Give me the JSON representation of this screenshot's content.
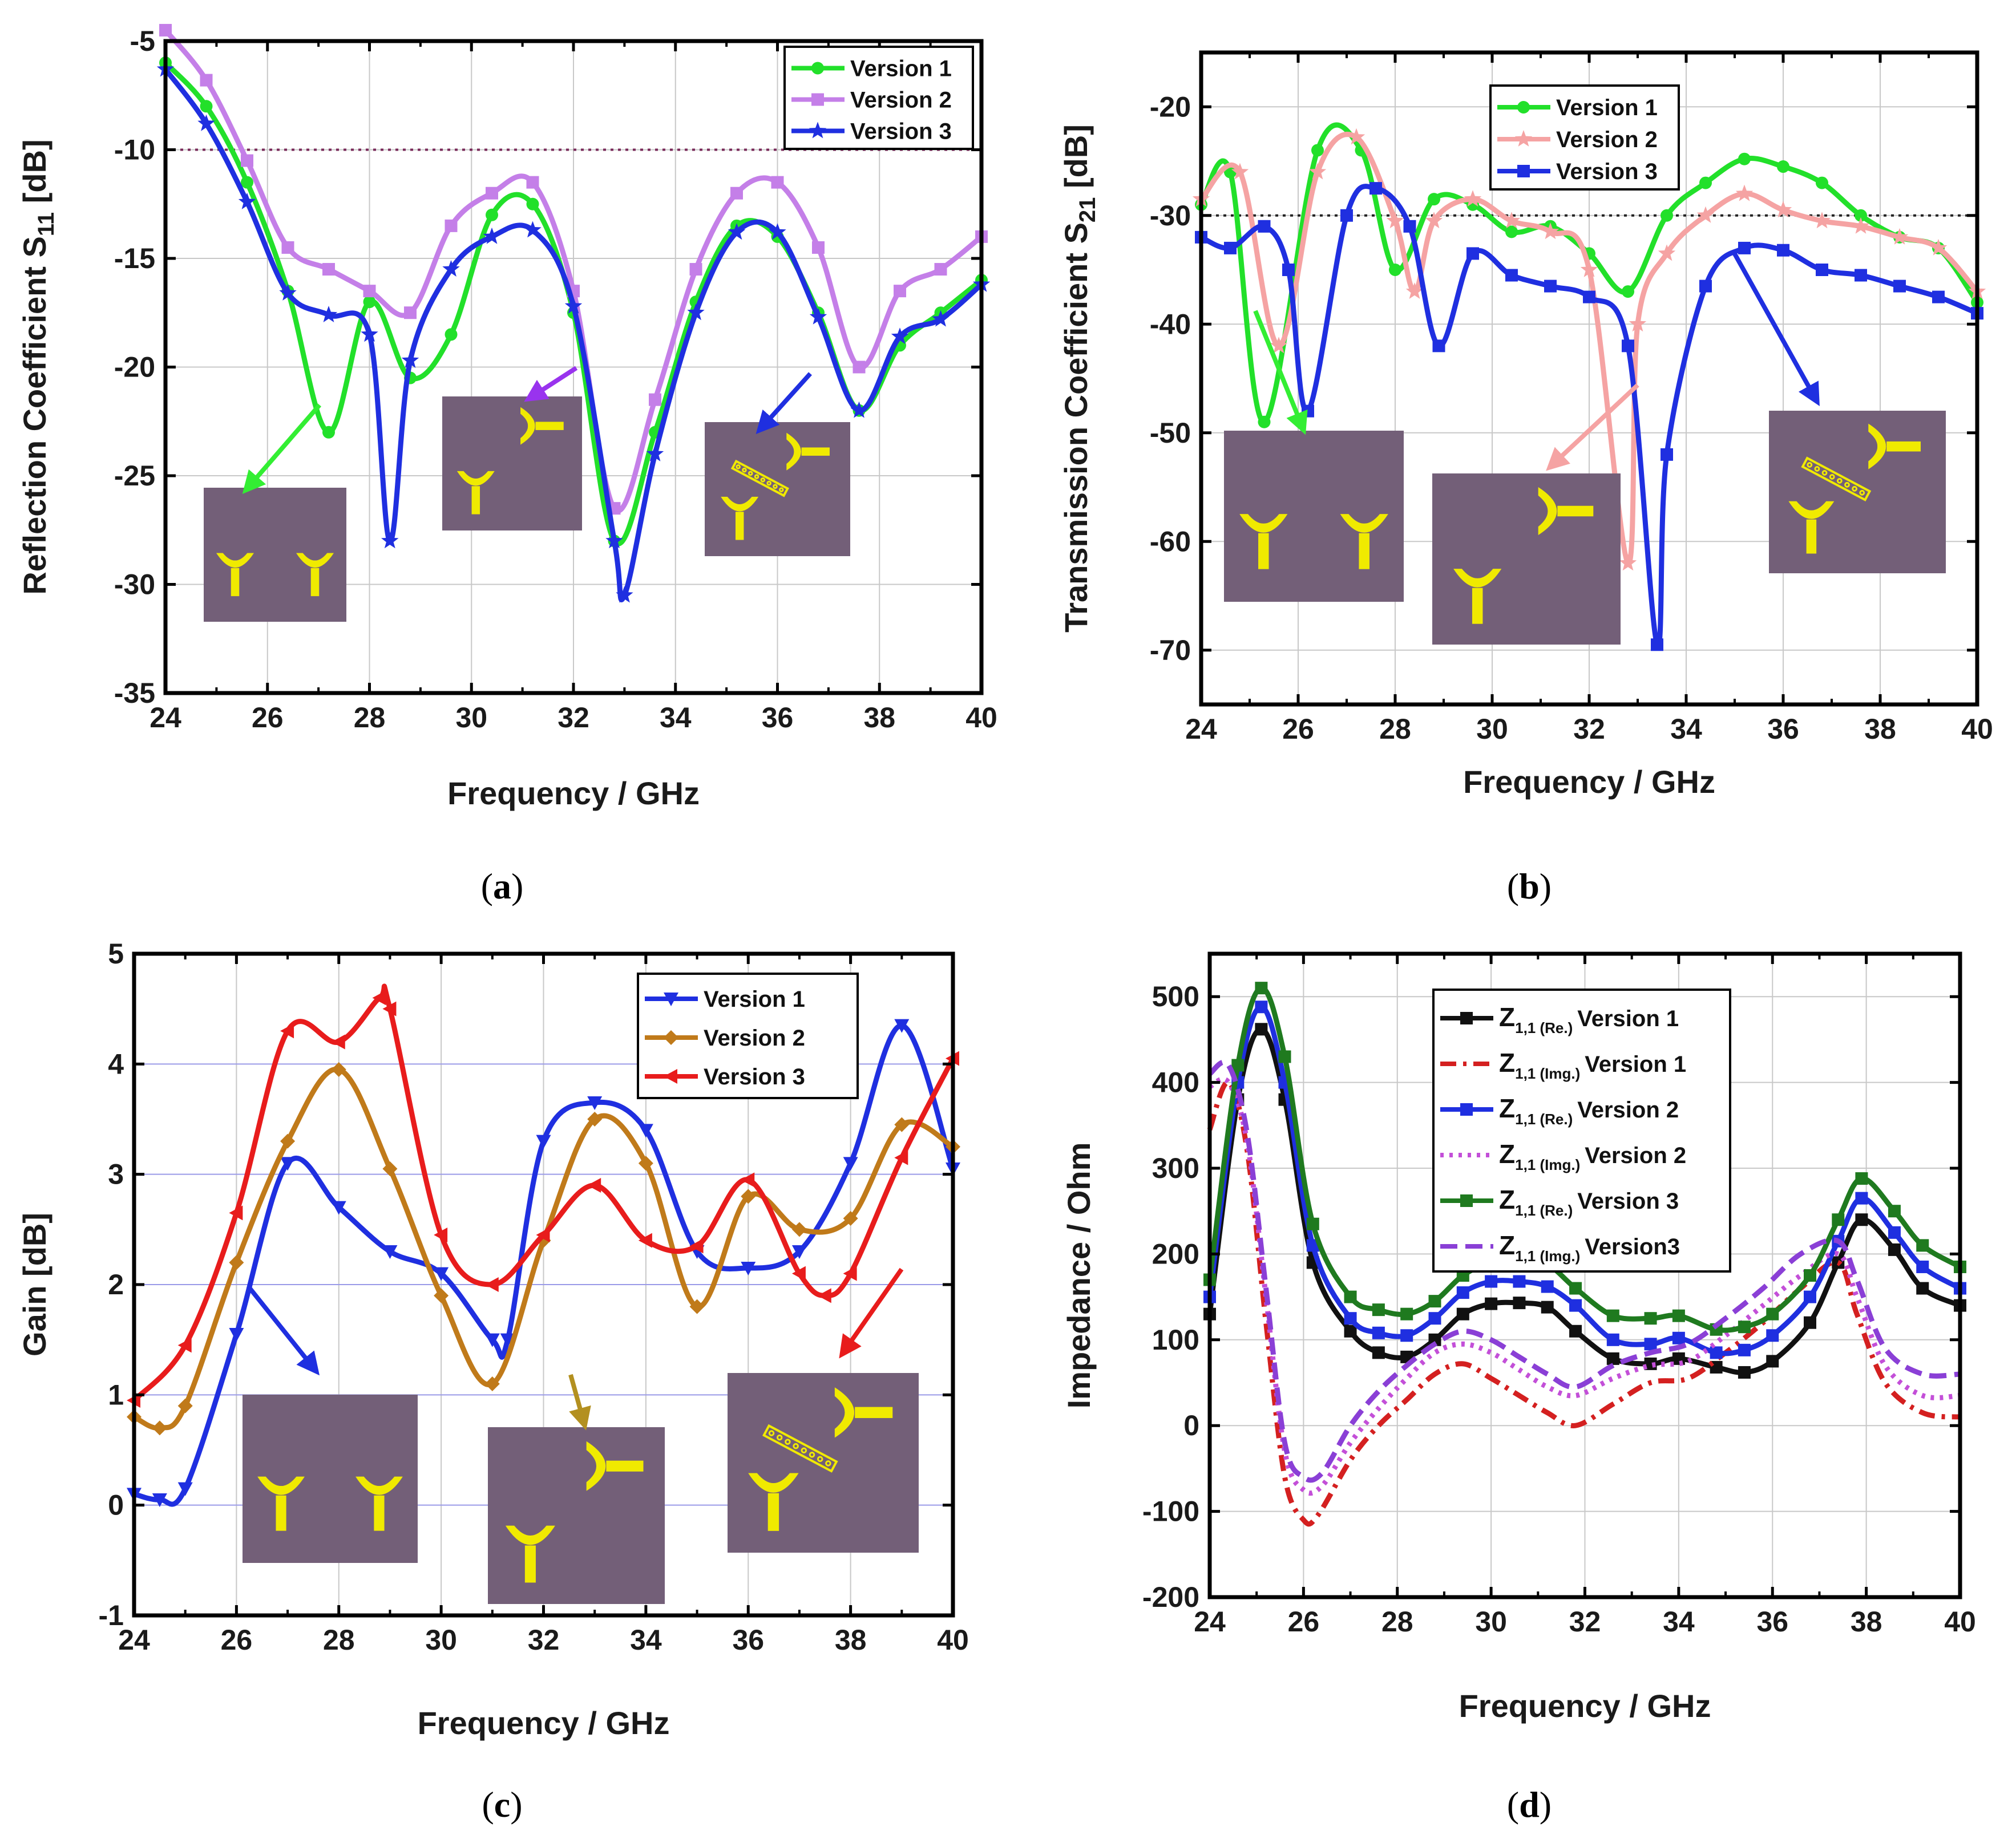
{
  "captions": {
    "a": "a",
    "b": "b",
    "c": "c",
    "d": "d"
  },
  "chart_data": [
    {
      "id": "a",
      "type": "line",
      "ylabel": "Reflection Coefficient S",
      "ylabel_sub": "11",
      "ylabel_suffix": " [dB]",
      "xlabel": "Frequency / GHz",
      "xlim": [
        24,
        40
      ],
      "ylim": [
        -35,
        -5
      ],
      "xticks": [
        24,
        26,
        28,
        30,
        32,
        34,
        36,
        38,
        40
      ],
      "yticks": [
        -35,
        -30,
        -25,
        -20,
        -15,
        -10,
        -5
      ],
      "grid": true,
      "legend_position": "top-right",
      "reference_line": {
        "y": -10,
        "color": "#7a2a5a",
        "style": "dotted"
      },
      "series": [
        {
          "name": "Version 1",
          "color": "#22e02a",
          "marker": "circle",
          "x": [
            24,
            24.8,
            25.6,
            26.4,
            27.2,
            28,
            28.8,
            29.6,
            30.4,
            31.2,
            32,
            32.8,
            33.6,
            34.4,
            35.2,
            36,
            36.8,
            37.6,
            38.4,
            39.2,
            40
          ],
          "y": [
            -6,
            -8,
            -11.5,
            -16.5,
            -23,
            -17,
            -20.5,
            -18.5,
            -13,
            -12.5,
            -17.5,
            -28,
            -23,
            -17,
            -13.5,
            -14,
            -17.5,
            -22,
            -19,
            -17.5,
            -16
          ]
        },
        {
          "name": "Version 2",
          "color": "#c47fe8",
          "marker": "square",
          "x": [
            24,
            24.8,
            25.6,
            26.4,
            27.2,
            28,
            28.8,
            29.6,
            30.4,
            31.2,
            32,
            32.8,
            33.6,
            34.4,
            35.2,
            36,
            36.8,
            37.6,
            38.4,
            39.2,
            40
          ],
          "y": [
            -4.5,
            -6.8,
            -10.5,
            -14.5,
            -15.5,
            -16.5,
            -17.5,
            -13.5,
            -12,
            -11.5,
            -16.5,
            -26.5,
            -21.5,
            -15.5,
            -12,
            -11.5,
            -14.5,
            -20,
            -16.5,
            -15.5,
            -14
          ]
        },
        {
          "name": "Version 3",
          "color": "#1f2fe0",
          "marker": "star",
          "x": [
            24,
            24.8,
            25.6,
            26.4,
            27.2,
            28,
            28.4,
            28.8,
            29.6,
            30.4,
            31.2,
            32,
            32.8,
            33,
            33.6,
            34.4,
            35.2,
            36,
            36.8,
            37.6,
            38.4,
            39.2,
            40
          ],
          "y": [
            -6.3,
            -8.8,
            -12.4,
            -16.6,
            -17.6,
            -18.5,
            -28,
            -19.7,
            -15.5,
            -14,
            -13.7,
            -17.2,
            -28,
            -30.5,
            -24,
            -17.5,
            -13.8,
            -13.8,
            -17.7,
            -22,
            -18.6,
            -17.8,
            -16.2
          ]
        }
      ]
    },
    {
      "id": "b",
      "type": "line",
      "ylabel": "Transmission Coefficient S",
      "ylabel_sub": "21",
      "ylabel_suffix": " [dB]",
      "xlabel": "Frequency / GHz",
      "xlim": [
        24,
        40
      ],
      "ylim": [
        -75,
        -15
      ],
      "xticks": [
        24,
        26,
        28,
        30,
        32,
        34,
        36,
        38,
        40
      ],
      "yticks": [
        -70,
        -60,
        -50,
        -40,
        -30,
        -20
      ],
      "grid": true,
      "legend_position": "top-left",
      "reference_line": {
        "y": -30,
        "color": "#222222",
        "style": "dotted"
      },
      "series": [
        {
          "name": "Version 1",
          "color": "#22e02a",
          "marker": "circle",
          "x": [
            24,
            24.6,
            25.3,
            26.4,
            27.3,
            28,
            28.8,
            29.6,
            30.4,
            31.2,
            32,
            32.8,
            33.6,
            34.4,
            35.2,
            36,
            36.8,
            37.6,
            38.4,
            39.2,
            40
          ],
          "y": [
            -29,
            -26,
            -49,
            -24,
            -24,
            -35,
            -28.5,
            -29,
            -31.5,
            -31,
            -33.5,
            -37,
            -30,
            -27,
            -24.8,
            -25.5,
            -27,
            -30,
            -32,
            -33,
            -38
          ]
        },
        {
          "name": "Version 2",
          "color": "#f5a3a3",
          "marker": "star",
          "x": [
            24,
            24.8,
            25.6,
            26.4,
            27.2,
            28,
            28.4,
            28.8,
            29.6,
            30.4,
            31.2,
            32,
            32.8,
            33,
            33.6,
            34.4,
            35.2,
            36,
            36.8,
            37.6,
            38.4,
            39.2,
            40
          ],
          "y": [
            -28.5,
            -26,
            -42,
            -26,
            -22.8,
            -30.5,
            -37,
            -30.5,
            -28.5,
            -30.5,
            -31.5,
            -35,
            -62,
            -40,
            -33.5,
            -30,
            -28,
            -29.5,
            -30.5,
            -31,
            -32,
            -33,
            -37
          ]
        },
        {
          "name": "Version 3",
          "color": "#1f2fe0",
          "marker": "square",
          "x": [
            24,
            24.6,
            25.3,
            25.8,
            26.2,
            27,
            27.6,
            28.3,
            28.9,
            29.6,
            30.4,
            31.2,
            32,
            32.8,
            33.4,
            33.6,
            34.4,
            35.2,
            36,
            36.8,
            37.6,
            38.4,
            39.2,
            40
          ],
          "y": [
            -32,
            -33,
            -31,
            -35,
            -48,
            -30,
            -27.5,
            -31,
            -42,
            -33.5,
            -35.5,
            -36.5,
            -37.5,
            -42,
            -69.5,
            -52,
            -36.5,
            -33,
            -33.2,
            -35,
            -35.5,
            -36.5,
            -37.5,
            -39
          ]
        }
      ]
    },
    {
      "id": "c",
      "type": "line",
      "ylabel": "Gain [dB]",
      "xlabel": "Frequency / GHz",
      "xlim": [
        24,
        40
      ],
      "ylim": [
        -1,
        5
      ],
      "xticks": [
        24,
        26,
        28,
        30,
        32,
        34,
        36,
        38,
        40
      ],
      "yticks": [
        -1,
        0,
        1,
        2,
        3,
        4,
        5
      ],
      "grid": true,
      "legend_position": "top-right",
      "series": [
        {
          "name": "Version 1",
          "color": "#1f2fe0",
          "marker": "triangle-down",
          "x": [
            24,
            24.5,
            25,
            26,
            27,
            28,
            29,
            30,
            31,
            31.3,
            32,
            33,
            34,
            35,
            36,
            37,
            38,
            39,
            40
          ],
          "y": [
            0.1,
            0.05,
            0.15,
            1.55,
            3.1,
            2.7,
            2.3,
            2.1,
            1.5,
            1.5,
            3.3,
            3.65,
            3.4,
            2.3,
            2.15,
            2.3,
            3.1,
            4.35,
            3.05
          ]
        },
        {
          "name": "Version 2",
          "color": "#c07a1a",
          "marker": "diamond",
          "x": [
            24,
            24.5,
            25,
            26,
            27,
            28,
            29,
            30,
            31,
            32,
            33,
            34,
            35,
            36,
            37,
            38,
            39,
            40
          ],
          "y": [
            0.8,
            0.7,
            0.9,
            2.2,
            3.3,
            3.95,
            3.05,
            1.9,
            1.1,
            2.4,
            3.5,
            3.1,
            1.8,
            2.8,
            2.5,
            2.6,
            3.45,
            3.25
          ]
        },
        {
          "name": "Version 3",
          "color": "#e81c1c",
          "marker": "triangle-left",
          "x": [
            24,
            25,
            26,
            27,
            28,
            28.8,
            29,
            30,
            31,
            32,
            33,
            34,
            35,
            36,
            37,
            37.5,
            38,
            39,
            40
          ],
          "y": [
            0.95,
            1.45,
            2.65,
            4.3,
            4.2,
            4.6,
            4.5,
            2.45,
            2.0,
            2.45,
            2.9,
            2.4,
            2.35,
            2.95,
            2.1,
            1.9,
            2.1,
            3.15,
            4.05
          ]
        }
      ]
    },
    {
      "id": "d",
      "type": "line",
      "ylabel": "Impedance / Ohm",
      "xlabel": "Frequency / GHz",
      "xlim": [
        24,
        40
      ],
      "ylim": [
        -200,
        550
      ],
      "xticks": [
        24,
        26,
        28,
        30,
        32,
        34,
        36,
        38,
        40
      ],
      "yticks": [
        -200,
        -100,
        0,
        100,
        200,
        300,
        400,
        500
      ],
      "grid": true,
      "legend_position": "top-center",
      "series": [
        {
          "name": "Version 1",
          "label_main": "Z",
          "label_sub": "1,1 (Re.)",
          "color": "#111111",
          "style": "solid",
          "marker": "square",
          "x": [
            24,
            24.6,
            25.1,
            25.6,
            26.2,
            27,
            27.6,
            28.2,
            28.8,
            29.4,
            30,
            30.6,
            31.2,
            31.8,
            32.6,
            33.4,
            34,
            34.8,
            35.4,
            36,
            36.8,
            37.4,
            37.9,
            38.6,
            39.2,
            40
          ],
          "y": [
            130,
            380,
            462,
            380,
            190,
            110,
            85,
            80,
            100,
            130,
            142,
            143,
            138,
            110,
            78,
            72,
            78,
            68,
            62,
            75,
            120,
            190,
            240,
            205,
            160,
            140
          ]
        },
        {
          "name": "Version 1",
          "label_main": "Z",
          "label_sub": "1,1 (Img.)",
          "color": "#d42020",
          "style": "dashdot",
          "marker": "none",
          "x": [
            24,
            24.4,
            24.8,
            25.2,
            25.6,
            26,
            26.3,
            27,
            27.6,
            28.2,
            28.8,
            29.4,
            30,
            30.6,
            31.2,
            31.8,
            32.6,
            33.4,
            34.2,
            35,
            35.8,
            36.6,
            37.4,
            37.8,
            38.4,
            39.2,
            40
          ],
          "y": [
            345,
            400,
            320,
            120,
            -60,
            -110,
            -105,
            -40,
            0,
            30,
            60,
            72,
            55,
            35,
            15,
            0,
            25,
            50,
            55,
            85,
            120,
            160,
            190,
            130,
            50,
            15,
            10
          ]
        },
        {
          "name": "Version 2",
          "label_main": "Z",
          "label_sub": "1,1 (Re.)",
          "color": "#1f2fe0",
          "style": "solid",
          "marker": "square",
          "x": [
            24,
            24.6,
            25.1,
            25.6,
            26.2,
            27,
            27.6,
            28.2,
            28.8,
            29.4,
            30,
            30.6,
            31.2,
            31.8,
            32.6,
            33.4,
            34,
            34.8,
            35.4,
            36,
            36.8,
            37.4,
            37.9,
            38.6,
            39.2,
            40
          ],
          "y": [
            150,
            400,
            488,
            400,
            210,
            125,
            108,
            105,
            125,
            155,
            168,
            168,
            162,
            140,
            100,
            95,
            102,
            85,
            88,
            105,
            150,
            215,
            265,
            225,
            185,
            160
          ]
        },
        {
          "name": "Version 2",
          "label_main": "Z",
          "label_sub": "1,1 (Img.)",
          "color": "#c34fd8",
          "style": "dotted",
          "marker": "none",
          "x": [
            24,
            24.4,
            24.8,
            25.2,
            25.6,
            26,
            26.4,
            27,
            27.6,
            28.2,
            28.8,
            29.4,
            30,
            30.6,
            31.2,
            31.8,
            32.6,
            33.4,
            34.2,
            35,
            35.8,
            36.6,
            37.4,
            37.8,
            38.4,
            39.2,
            40
          ],
          "y": [
            395,
            400,
            330,
            150,
            -30,
            -75,
            -70,
            -20,
            20,
            55,
            85,
            95,
            85,
            65,
            45,
            35,
            55,
            70,
            75,
            105,
            140,
            175,
            200,
            150,
            70,
            35,
            35
          ]
        },
        {
          "name": "Version 3",
          "label_main": "Z",
          "label_sub": "1,1 (Re.)",
          "color": "#1f7a1f",
          "style": "solid",
          "marker": "square",
          "x": [
            24,
            24.6,
            25.1,
            25.6,
            26.2,
            27,
            27.6,
            28.2,
            28.8,
            29.4,
            30,
            30.6,
            31.2,
            31.8,
            32.6,
            33.4,
            34,
            34.8,
            35.4,
            36,
            36.8,
            37.4,
            37.9,
            38.6,
            39.2,
            40
          ],
          "y": [
            170,
            420,
            510,
            430,
            235,
            150,
            135,
            130,
            145,
            175,
            190,
            192,
            188,
            160,
            128,
            125,
            128,
            112,
            115,
            130,
            175,
            240,
            288,
            250,
            210,
            185
          ]
        },
        {
          "name": "Version3",
          "label_main": "Z",
          "label_sub": "1,1 (Img.)",
          "color": "#8a3fd6",
          "style": "dashed",
          "marker": "none",
          "x": [
            24,
            24.4,
            24.8,
            25.2,
            25.6,
            26,
            26.4,
            27,
            27.6,
            28.2,
            28.8,
            29.4,
            30,
            30.6,
            31.2,
            31.8,
            32.6,
            33.4,
            34.2,
            35,
            35.8,
            36.6,
            37.4,
            37.8,
            38.4,
            39.2,
            40
          ],
          "y": [
            410,
            420,
            340,
            160,
            -20,
            -60,
            -55,
            0,
            40,
            70,
            95,
            110,
            100,
            80,
            60,
            45,
            70,
            85,
            95,
            125,
            160,
            200,
            215,
            170,
            90,
            60,
            60
          ]
        }
      ]
    }
  ],
  "arrow_colors": {
    "a": [
      "#33ee33",
      "#9933ee",
      "#1f2fe0"
    ],
    "b": [
      "#33ee33",
      "#f5a3a3",
      "#1f2fe0"
    ],
    "c": [
      "#1f2fe0",
      "#b39020",
      "#e81c1c"
    ]
  },
  "inset_colors": {
    "substrate": "#735f78",
    "patch": "#f0ea00"
  }
}
